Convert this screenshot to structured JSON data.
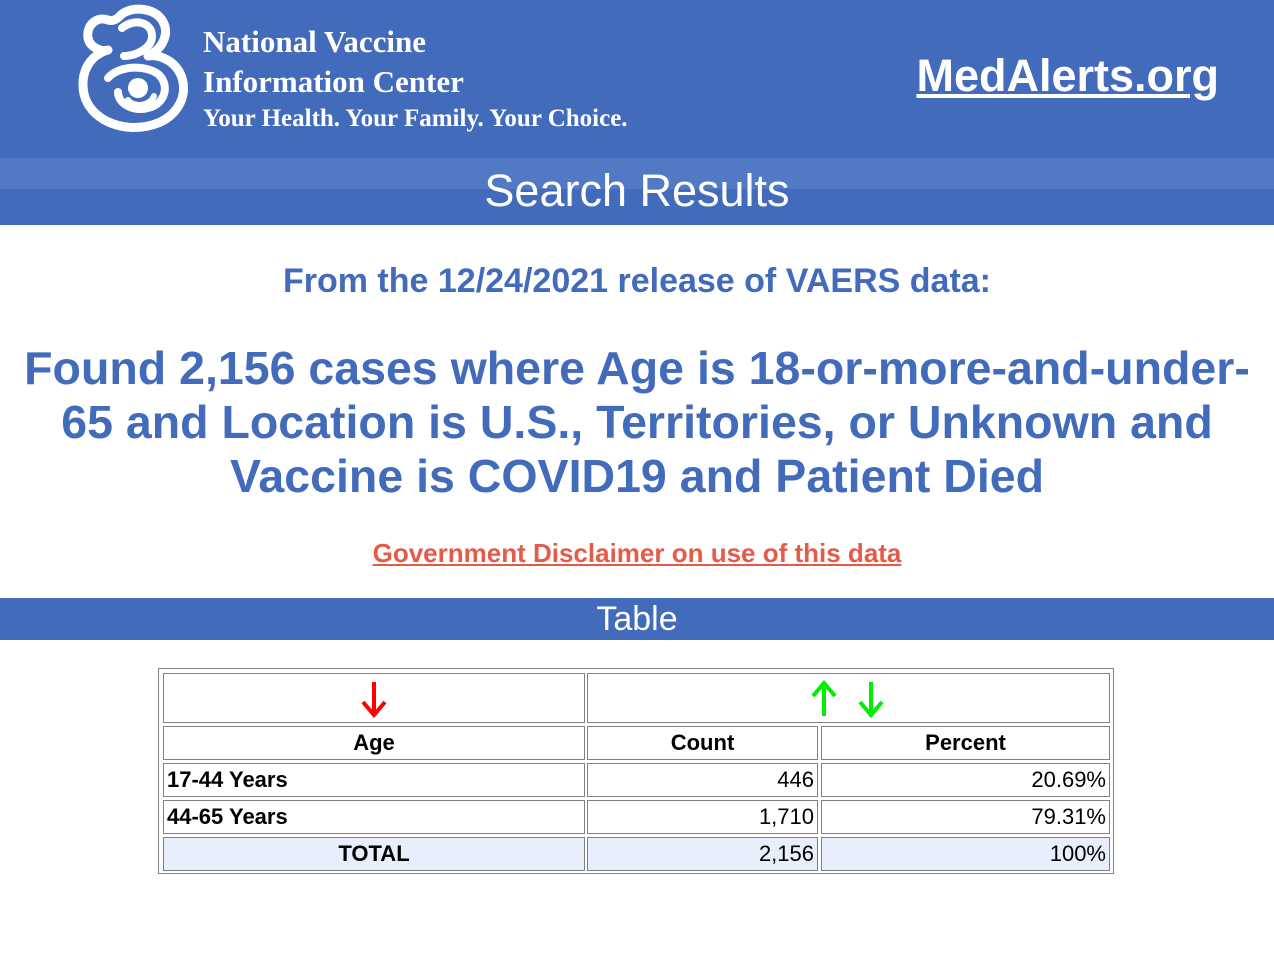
{
  "header": {
    "org_line1": "National Vaccine",
    "org_line2": "Information Center",
    "tagline": "Your Health. Your Family. Your Choice.",
    "site_link": "MedAlerts.org",
    "logo_icon": "nvic-mother-child-logo"
  },
  "results": {
    "title": "Search Results",
    "release_text": "From the 12/24/2021 release of VAERS data:",
    "found_text": "Found 2,156 cases where Age is 18-or-more-and-under-65 and Location is U.S., Territories, or Unknown and Vaccine is COVID19 and Patient Died",
    "disclaimer_link": "Government Disclaimer on use of this data"
  },
  "table_section": {
    "title": "Table",
    "sort_icons": {
      "age": "sort-down-arrow-icon",
      "count_up": "sort-up-arrow-icon",
      "count_down": "sort-down-arrow-icon"
    },
    "columns": [
      "Age",
      "Count",
      "Percent"
    ],
    "rows": [
      {
        "age": "17-44 Years",
        "count": "446",
        "percent": "20.69%"
      },
      {
        "age": "44-65 Years",
        "count": "1,710",
        "percent": "79.31%"
      }
    ],
    "total": {
      "label": "TOTAL",
      "count": "2,156",
      "percent": "100%"
    }
  },
  "colors": {
    "header_blue": "#426bbb",
    "stripe_blue": "#5179c4",
    "disclaimer_red": "#e45b48",
    "arrow_red": "#ff0000",
    "arrow_green": "#00ee00",
    "total_row_bg": "#e8eefb"
  }
}
